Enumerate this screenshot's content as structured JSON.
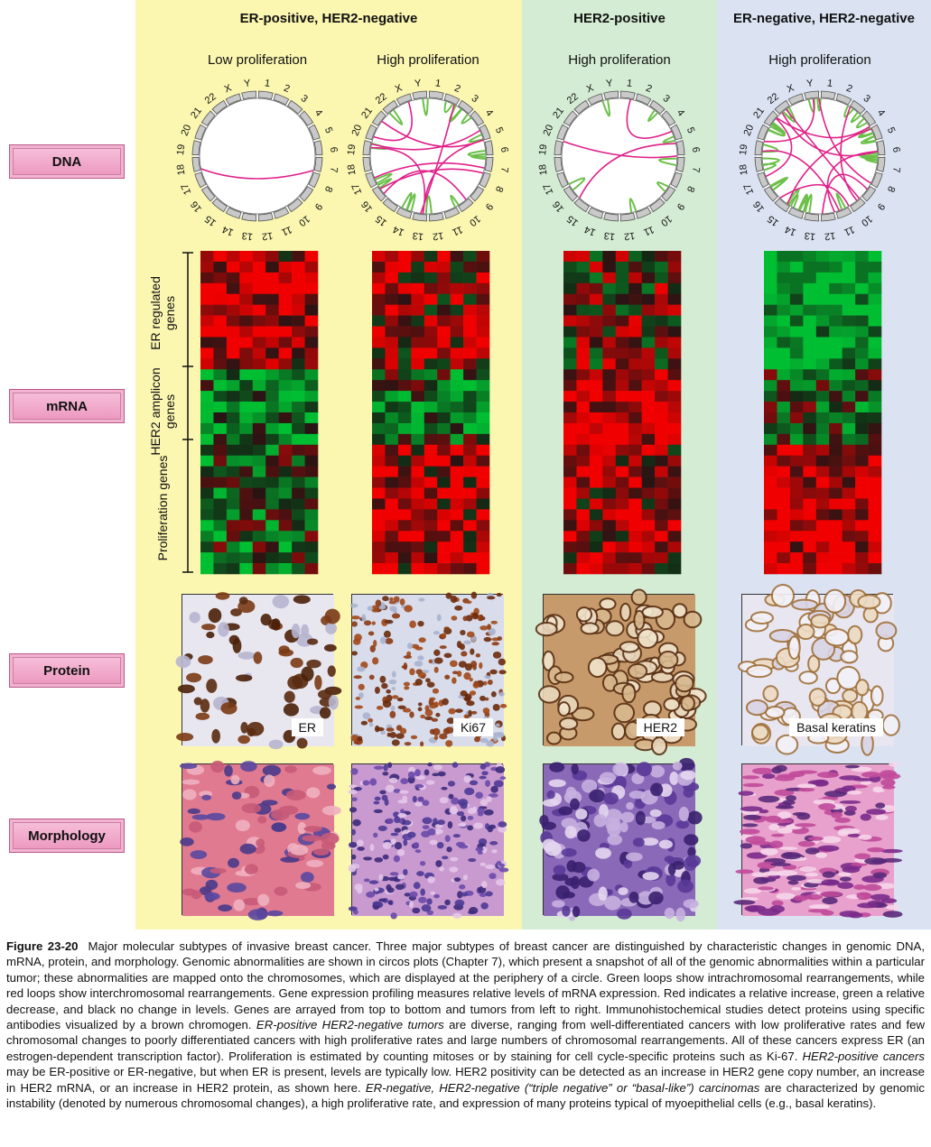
{
  "groups": [
    "ER-positive, HER2-negative",
    "HER2-positive",
    "ER-negative, HER2-negative"
  ],
  "columns": [
    "Low proliferation",
    "High proliferation",
    "High proliferation",
    "High proliferation"
  ],
  "row_labels": [
    "DNA",
    "mRNA",
    "Protein",
    "Morphology"
  ],
  "gene_groups": [
    "ER regulated genes",
    "HER2 amplicon genes",
    "Proliferation genes"
  ],
  "chromosomes": [
    "1",
    "2",
    "3",
    "4",
    "5",
    "6",
    "7",
    "8",
    "9",
    "10",
    "11",
    "12",
    "13",
    "14",
    "15",
    "16",
    "17",
    "18",
    "19",
    "20",
    "21",
    "22",
    "X",
    "Y"
  ],
  "protein_labels": [
    "ER",
    "Ki67",
    "HER2",
    "Basal keratins"
  ],
  "colors": {
    "er_her2neg_band": "#fbf6b0",
    "her2pos_band": "#d4ecd3",
    "triple_neg_band": "#dbe3f3",
    "label_box": "#ec94bd",
    "red": "#e0141e",
    "green": "#3fb43a",
    "loop_red": "#e0208a",
    "loop_green": "#6cc04a"
  },
  "caption": {
    "figure_label": "Figure 23-20",
    "text": "Major molecular subtypes of invasive breast cancer. Three major subtypes of breast cancer are distinguished by characteristic changes in genomic DNA, mRNA, protein, and morphology. Genomic abnormalities are shown in circos plots (Chapter 7), which present a snapshot of all of the genomic abnormalities within a particular tumor; these abnormalities are mapped onto the chromosomes, which are displayed at the periphery of a circle. Green loops show intrachromosomal rearrangements, while red loops show interchromosomal rearrangements. Gene expression profiling measures relative levels of mRNA expression. Red indicates a relative increase, green a relative decrease, and black no change in levels. Genes are arrayed from top to bottom and tumors from left to right. Immunohistochemical studies detect proteins using specific antibodies visualized by a brown chromogen.",
    "em1": "ER-positive HER2-negative tumors",
    "text2": "are diverse, ranging from well-differentiated cancers with low proliferative rates and few chromosomal changes to poorly differentiated cancers with high proliferative rates and large numbers of chromosomal rearrangements. All of these cancers express ER (an estrogen-dependent transcription factor). Proliferation is estimated by counting mitoses or by staining for cell cycle-specific proteins such as Ki-67.",
    "em2": "HER2-positive cancers",
    "text3": "may be ER-positive or ER-negative, but when ER is present, levels are typically low. HER2 positivity can be detected as an increase in HER2 gene copy number, an increase in HER2 mRNA, or an increase in HER2 protein, as shown here.",
    "em3": "ER-negative, HER2-negative (“triple negative” or “basal-like”) carcinomas",
    "text4": "are characterized by genomic instability (denoted by numerous chromosomal changes), a high proliferative rate, and expression of many proteins typical of myoepithelial cells (e.g., basal keratins)."
  }
}
